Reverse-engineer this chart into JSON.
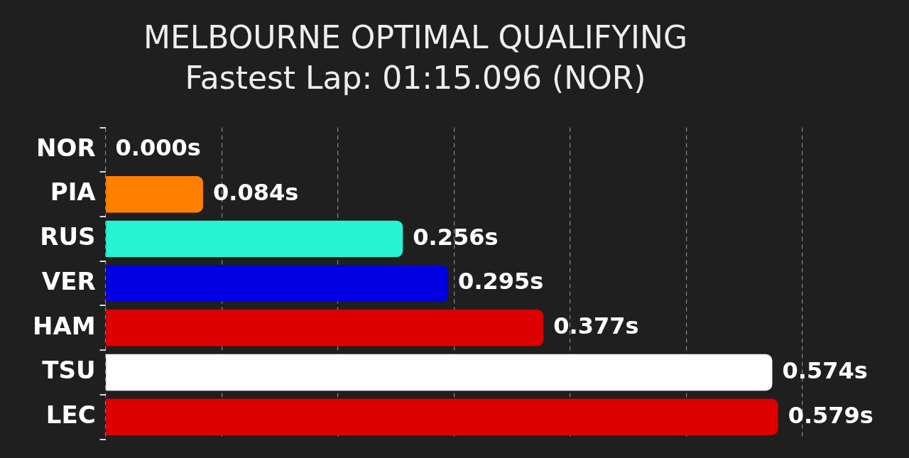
{
  "chart_data": {
    "type": "bar",
    "orientation": "horizontal",
    "title": "MELBOURNE OPTIMAL QUALIFYING",
    "subtitle": "Fastest Lap: 01:15.096 (NOR)",
    "categories": [
      "NOR",
      "PIA",
      "RUS",
      "VER",
      "HAM",
      "TSU",
      "LEC"
    ],
    "values": [
      0,
      0.084,
      0.256,
      0.295,
      0.377,
      0.574,
      0.579
    ],
    "colors": [
      "#ff8000",
      "#ff8000",
      "#27f4d2",
      "#0000e0",
      "#dd0000",
      "#ffffff",
      "#dd0000"
    ],
    "value_labels": [
      "0.000s",
      "0.084s",
      "0.256s",
      "0.295s",
      "0.377s",
      "0.574s",
      "0.579s"
    ],
    "grid": "x",
    "tick_labels": "y",
    "legend": false
  }
}
